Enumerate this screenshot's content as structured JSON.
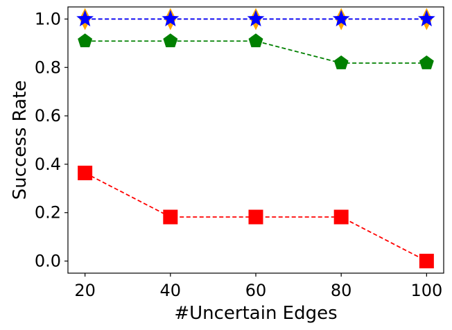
{
  "chart_data": {
    "type": "line",
    "title": "",
    "xlabel": "#Uncertain Edges",
    "ylabel": "Success Rate",
    "x": [
      20,
      40,
      60,
      80,
      100
    ],
    "xlim": [
      16,
      104
    ],
    "ylim": [
      -0.05,
      1.05
    ],
    "xticks": [
      "20",
      "40",
      "60",
      "80",
      "100"
    ],
    "yticks": [
      "0.0",
      "0.2",
      "0.4",
      "0.6",
      "0.8",
      "1.0"
    ],
    "grid": false,
    "legend": "none",
    "series": [
      {
        "name": "series-orange-diamond",
        "color": "#ffa500",
        "marker": "diamond",
        "values": [
          1.0,
          1.0,
          1.0,
          1.0,
          1.0
        ]
      },
      {
        "name": "series-blue-star",
        "color": "#0000ff",
        "marker": "star",
        "values": [
          1.0,
          1.0,
          1.0,
          1.0,
          1.0
        ]
      },
      {
        "name": "series-green-pentagon",
        "color": "#008000",
        "marker": "pentagon",
        "values": [
          0.909,
          0.909,
          0.909,
          0.818,
          0.818
        ]
      },
      {
        "name": "series-red-square",
        "color": "#ff0000",
        "marker": "square",
        "values": [
          0.364,
          0.182,
          0.182,
          0.182,
          0.0
        ]
      }
    ]
  }
}
